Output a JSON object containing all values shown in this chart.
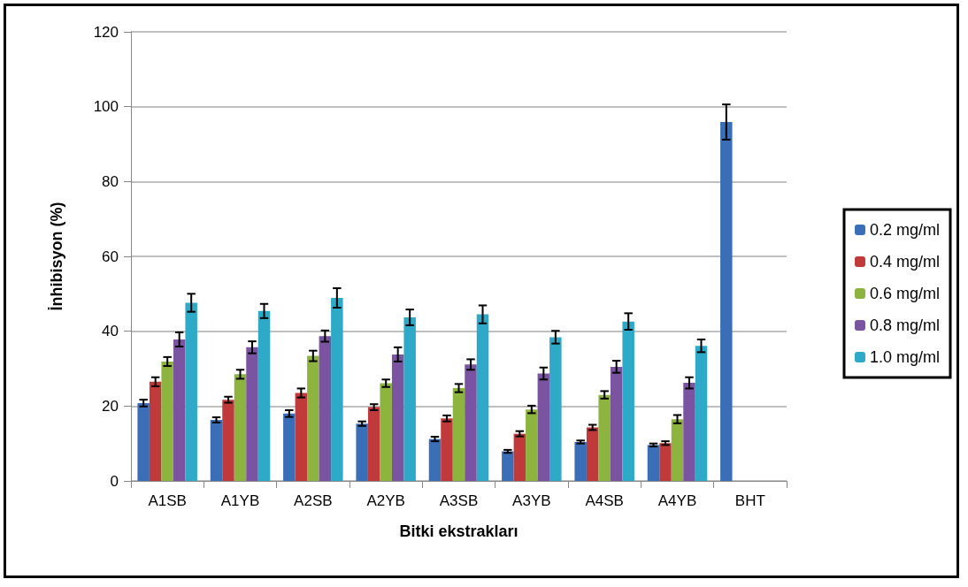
{
  "chart_data": {
    "type": "bar",
    "xlabel": "Bitki ekstrakları",
    "ylabel": "İnhibisyon (%)",
    "categories": [
      "A1SB",
      "A1YB",
      "A2SB",
      "A2YB",
      "A3SB",
      "A3YB",
      "A4SB",
      "A4YB",
      "BHT"
    ],
    "series": [
      {
        "name": "0.2 mg/ml",
        "color": "#3a6fb8",
        "values": [
          20.8,
          16.3,
          18.0,
          15.3,
          11.2,
          7.9,
          10.4,
          9.6,
          95.9
        ],
        "errors": [
          0.9,
          0.7,
          0.9,
          0.6,
          0.6,
          0.4,
          0.4,
          0.4,
          4.7
        ]
      },
      {
        "name": "0.4 mg/ml",
        "color": "#c0393b",
        "values": [
          26.5,
          21.7,
          23.5,
          19.7,
          16.7,
          12.6,
          14.3,
          10.1,
          null
        ],
        "errors": [
          1.2,
          0.8,
          1.2,
          0.8,
          0.8,
          0.7,
          0.7,
          0.5,
          null
        ]
      },
      {
        "name": "0.6 mg/ml",
        "color": "#8db43e",
        "values": [
          31.9,
          28.5,
          33.4,
          26.1,
          24.8,
          19.1,
          23.0,
          16.5,
          null
        ],
        "errors": [
          1.2,
          1.2,
          1.4,
          1.0,
          1.1,
          1.0,
          1.0,
          1.1,
          null
        ]
      },
      {
        "name": "0.8 mg/ml",
        "color": "#7a54a0",
        "values": [
          37.8,
          35.7,
          38.7,
          33.8,
          31.1,
          28.7,
          30.5,
          26.2,
          null
        ],
        "errors": [
          1.9,
          1.6,
          1.5,
          1.9,
          1.4,
          1.6,
          1.6,
          1.5,
          null
        ]
      },
      {
        "name": "1.0 mg/ml",
        "color": "#2ea9c8",
        "values": [
          47.6,
          45.4,
          48.9,
          43.7,
          44.5,
          38.4,
          42.6,
          36.1,
          null
        ],
        "errors": [
          2.4,
          1.9,
          2.6,
          2.1,
          2.4,
          1.7,
          2.2,
          1.7,
          null
        ]
      }
    ],
    "ylim": [
      0,
      120
    ],
    "yticks": [
      0,
      20,
      40,
      60,
      80,
      100,
      120
    ],
    "grid": "y",
    "legend": "right"
  }
}
